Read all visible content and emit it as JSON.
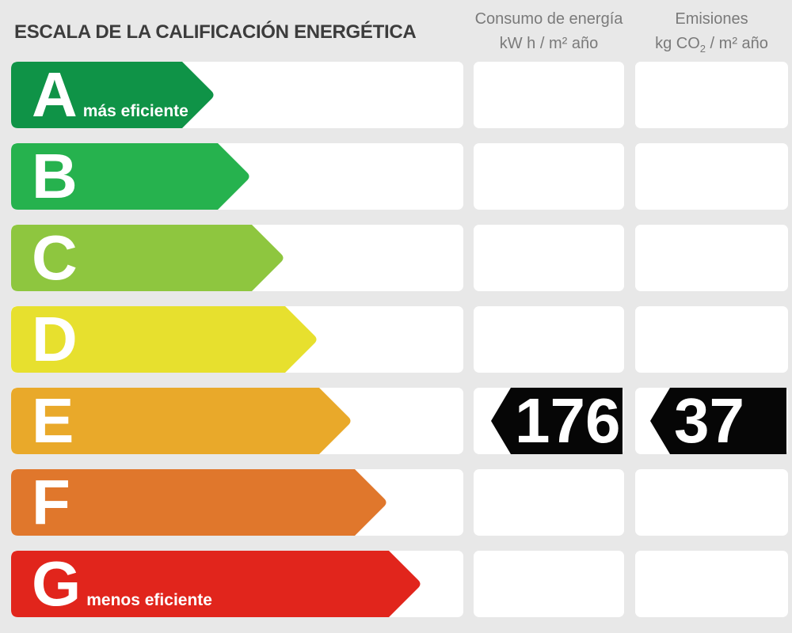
{
  "title": "ESCALA DE LA CALIFICACIÓN ENERGÉTICA",
  "columns": {
    "consumo": {
      "title": "Consumo de energía",
      "unit": "kW h / m² año"
    },
    "emisiones": {
      "title": "Emisiones",
      "unit_pre": "kg CO",
      "unit_sub": "2",
      "unit_post": " / m² año"
    }
  },
  "scale": {
    "rows": [
      {
        "letter": "A",
        "note": "más eficiente",
        "color": "#0f9347",
        "arrow_width": 258,
        "consumo": null,
        "emisiones": null
      },
      {
        "letter": "B",
        "note": "",
        "color": "#26b24e",
        "arrow_width": 303,
        "consumo": null,
        "emisiones": null
      },
      {
        "letter": "C",
        "note": "",
        "color": "#8ec63f",
        "arrow_width": 346,
        "consumo": null,
        "emisiones": null
      },
      {
        "letter": "D",
        "note": "",
        "color": "#e7e02e",
        "arrow_width": 388,
        "consumo": null,
        "emisiones": null
      },
      {
        "letter": "E",
        "note": "",
        "color": "#e9a92a",
        "arrow_width": 431,
        "consumo": "176",
        "emisiones": "37"
      },
      {
        "letter": "F",
        "note": "",
        "color": "#e0772c",
        "arrow_width": 476,
        "consumo": null,
        "emisiones": null
      },
      {
        "letter": "G",
        "note": "menos eficiente",
        "color": "#e1251c",
        "arrow_width": 519,
        "consumo": null,
        "emisiones": null
      }
    ]
  },
  "chart_data": {
    "type": "bar",
    "title": "ESCALA DE LA CALIFICACIÓN ENERGÉTICA",
    "categories": [
      "A",
      "B",
      "C",
      "D",
      "E",
      "F",
      "G"
    ],
    "values": [
      258,
      303,
      346,
      388,
      431,
      476,
      519
    ],
    "bar_colors": [
      "#0f9347",
      "#26b24e",
      "#8ec63f",
      "#e7e02e",
      "#e9a92a",
      "#e0772c",
      "#e1251c"
    ],
    "annotations": [
      "A = más eficiente",
      "G = menos eficiente"
    ],
    "rating": {
      "class": "E",
      "consumo_kwh_m2_ano": 176,
      "emisiones_kgco2_m2_ano": 37
    },
    "series": [
      {
        "name": "Consumo de energía kW h / m² año",
        "values": [
          null,
          null,
          null,
          null,
          176,
          null,
          null
        ]
      },
      {
        "name": "Emisiones kg CO2 / m² año",
        "values": [
          null,
          null,
          null,
          null,
          37,
          null,
          null
        ]
      }
    ],
    "legend_position": "none",
    "grid": false,
    "orientation": "horizontal"
  }
}
